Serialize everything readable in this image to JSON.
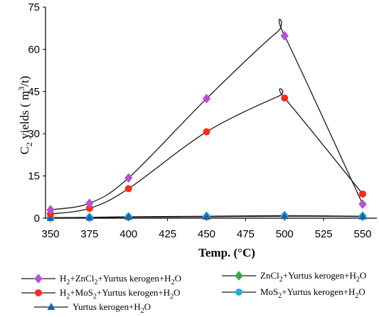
{
  "chart_data": {
    "type": "line",
    "title": "",
    "xlabel": "Temp. (°C)",
    "ylabel": {
      "main": "C",
      "sub": "2",
      "rest": " yields ( m",
      "sup": "3",
      "end": "/t)"
    },
    "x_ticks": [
      "350",
      "375",
      "400",
      "425",
      "450",
      "475",
      "500",
      "525",
      "550"
    ],
    "y_ticks": [
      "0",
      "15",
      "30",
      "45",
      "60",
      "75"
    ],
    "xlim": [
      350,
      550
    ],
    "ylim": [
      0,
      75
    ],
    "grid": false,
    "legend_position": "bottom",
    "series": [
      {
        "name": "H2+ZnCl2+Yurtus kerogen+H2O",
        "name_parts": [
          [
            "H",
            ""
          ],
          [
            "2",
            "sub"
          ],
          [
            "+ZnCl",
            ""
          ],
          [
            "2",
            "sub"
          ],
          [
            "+Yurtus kerogen+H",
            ""
          ],
          [
            "2",
            "sub"
          ],
          [
            "O",
            ""
          ]
        ],
        "marker": "diamond",
        "color": "#b84fd8",
        "x": [
          350,
          375,
          400,
          450,
          500,
          550
        ],
        "y": [
          3,
          5.3,
          14.3,
          42.5,
          64.8,
          5
        ],
        "peak": [
          495,
          66
        ]
      },
      {
        "name": "H2+MoS2+Yurtus kerogen+H2O",
        "name_parts": [
          [
            "H",
            ""
          ],
          [
            "2",
            "sub"
          ],
          [
            "+MoS",
            ""
          ],
          [
            "2",
            "sub"
          ],
          [
            "+Yurtus kerogen+H",
            ""
          ],
          [
            "2",
            "sub"
          ],
          [
            "O",
            ""
          ]
        ],
        "marker": "circle",
        "color": "#ff2a1a",
        "x": [
          350,
          375,
          400,
          450,
          500,
          550
        ],
        "y": [
          1.5,
          3.5,
          10.5,
          30.7,
          42.7,
          8.6
        ],
        "peak": [
          496,
          43.3
        ]
      },
      {
        "name": "Yurtus kerogen+H2O",
        "name_parts": [
          [
            "Yurtus kerogen+H",
            ""
          ],
          [
            "2",
            "sub"
          ],
          [
            "O",
            ""
          ]
        ],
        "marker": "triangle",
        "color": "#1a5fb4",
        "x": [
          350,
          375,
          400,
          450,
          500,
          550
        ],
        "y": [
          0.1,
          0.2,
          0.4,
          0.5,
          0.7,
          0.6
        ]
      },
      {
        "name": "ZnCl2+Yurtus kerogen+H2O",
        "name_parts": [
          [
            "ZnCl",
            ""
          ],
          [
            "2",
            "sub"
          ],
          [
            "+Yurtus kerogen+H",
            ""
          ],
          [
            "2",
            "sub"
          ],
          [
            "O",
            ""
          ]
        ],
        "marker": "diamond",
        "color": "#2eaa4a",
        "x": [
          350,
          375,
          400,
          450,
          500,
          550
        ],
        "y": [
          0.2,
          0.3,
          0.5,
          0.7,
          0.9,
          0.7
        ]
      },
      {
        "name": "MoS2+Yurtus kerogen+H2O",
        "name_parts": [
          [
            "MoS",
            ""
          ],
          [
            "2",
            "sub"
          ],
          [
            "+Yurtus kerogen+H",
            ""
          ],
          [
            "2",
            "sub"
          ],
          [
            "O",
            ""
          ]
        ],
        "marker": "circle",
        "color": "#1ab0e8",
        "x": [
          350,
          375,
          400,
          450,
          500,
          550
        ],
        "y": [
          0.15,
          0.25,
          0.45,
          0.6,
          0.8,
          0.65
        ]
      }
    ]
  }
}
